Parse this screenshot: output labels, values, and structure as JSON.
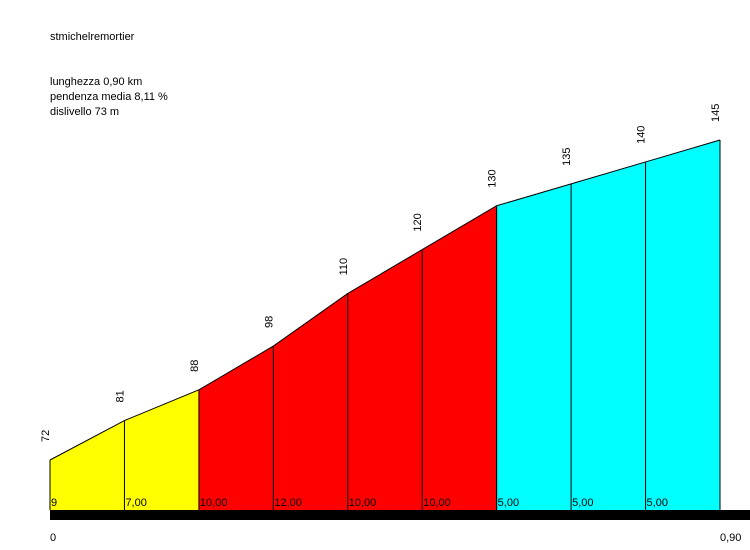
{
  "chart_data": {
    "type": "area",
    "title": "stmichelremortier",
    "stats": {
      "length": "lunghezza 0,90 km",
      "gradient": "pendenza media 8,11 %",
      "elevation_gain": "dislivello 73 m"
    },
    "x_km": [
      0,
      0.1,
      0.2,
      0.3,
      0.4,
      0.5,
      0.6,
      0.7,
      0.8,
      0.9
    ],
    "elevations": [
      72,
      81,
      88,
      98,
      110,
      120,
      130,
      135,
      140,
      145
    ],
    "elevation_labels": [
      "72",
      "81",
      "88",
      "98",
      "110",
      "120",
      "130",
      "135",
      "140",
      "145"
    ],
    "segments": [
      {
        "grade_label": "9",
        "color": "#FFFF00"
      },
      {
        "grade_label": "7,00",
        "color": "#FFFF00"
      },
      {
        "grade_label": "10,00",
        "color": "#FF0000"
      },
      {
        "grade_label": "12,00",
        "color": "#FF0000"
      },
      {
        "grade_label": "10,00",
        "color": "#FF0000"
      },
      {
        "grade_label": "10,00",
        "color": "#FF0000"
      },
      {
        "grade_label": "5,00",
        "color": "#00FFFF"
      },
      {
        "grade_label": "5,00",
        "color": "#00FFFF"
      },
      {
        "grade_label": "5,00",
        "color": "#00FFFF"
      }
    ],
    "x_start_label": "0",
    "x_end_label": "0,90",
    "xlim": [
      0,
      0.9
    ],
    "ylim": [
      65,
      145
    ]
  }
}
